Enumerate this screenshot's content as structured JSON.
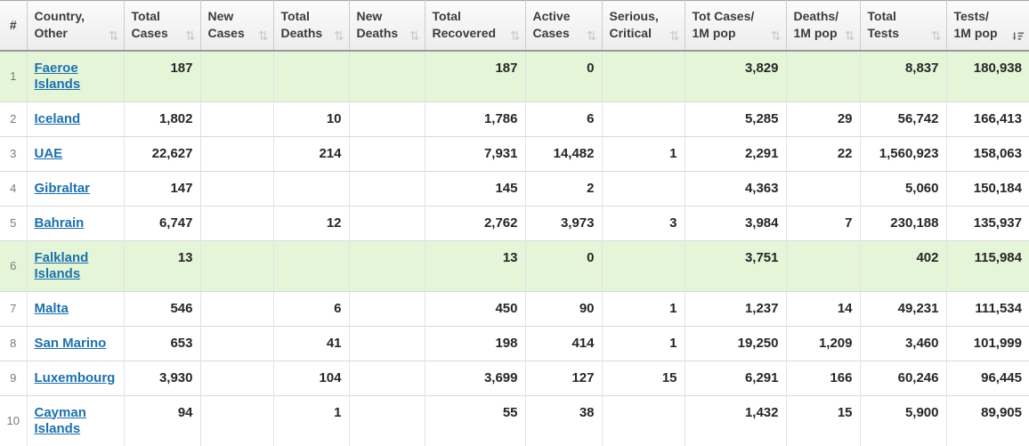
{
  "table": {
    "columns": [
      {
        "id": "rank",
        "lines": [
          "#"
        ],
        "sort": "none",
        "align": "center"
      },
      {
        "id": "country",
        "lines": [
          "Country,",
          "Other"
        ],
        "sort": "inactive",
        "align": "left"
      },
      {
        "id": "total_cases",
        "lines": [
          "Total",
          "Cases"
        ],
        "sort": "inactive",
        "align": "right"
      },
      {
        "id": "new_cases",
        "lines": [
          "New",
          "Cases"
        ],
        "sort": "inactive",
        "align": "right"
      },
      {
        "id": "total_deaths",
        "lines": [
          "Total",
          "Deaths"
        ],
        "sort": "inactive",
        "align": "right"
      },
      {
        "id": "new_deaths",
        "lines": [
          "New",
          "Deaths"
        ],
        "sort": "inactive",
        "align": "right"
      },
      {
        "id": "total_recovered",
        "lines": [
          "Total",
          "Recovered"
        ],
        "sort": "inactive",
        "align": "right"
      },
      {
        "id": "active_cases",
        "lines": [
          "Active",
          "Cases"
        ],
        "sort": "inactive",
        "align": "right"
      },
      {
        "id": "serious_critical",
        "lines": [
          "Serious,",
          "Critical"
        ],
        "sort": "inactive",
        "align": "right"
      },
      {
        "id": "tot_cases_1m",
        "lines": [
          "Tot Cases/",
          "1M pop"
        ],
        "sort": "inactive",
        "align": "right"
      },
      {
        "id": "deaths_1m",
        "lines": [
          "Deaths/",
          "1M pop"
        ],
        "sort": "inactive",
        "align": "right"
      },
      {
        "id": "total_tests",
        "lines": [
          "Total",
          "Tests"
        ],
        "sort": "inactive",
        "align": "right"
      },
      {
        "id": "tests_1m",
        "lines": [
          "Tests/",
          "1M pop"
        ],
        "sort": "desc",
        "align": "right"
      }
    ],
    "rows": [
      {
        "rank": "1",
        "country": "Faeroe Islands",
        "total_cases": "187",
        "new_cases": "",
        "total_deaths": "",
        "new_deaths": "",
        "total_recovered": "187",
        "active_cases": "0",
        "serious_critical": "",
        "tot_cases_1m": "3,829",
        "deaths_1m": "",
        "total_tests": "8,837",
        "tests_1m": "180,938",
        "highlighted": true
      },
      {
        "rank": "2",
        "country": "Iceland",
        "total_cases": "1,802",
        "new_cases": "",
        "total_deaths": "10",
        "new_deaths": "",
        "total_recovered": "1,786",
        "active_cases": "6",
        "serious_critical": "",
        "tot_cases_1m": "5,285",
        "deaths_1m": "29",
        "total_tests": "56,742",
        "tests_1m": "166,413",
        "highlighted": false
      },
      {
        "rank": "3",
        "country": "UAE",
        "total_cases": "22,627",
        "new_cases": "",
        "total_deaths": "214",
        "new_deaths": "",
        "total_recovered": "7,931",
        "active_cases": "14,482",
        "serious_critical": "1",
        "tot_cases_1m": "2,291",
        "deaths_1m": "22",
        "total_tests": "1,560,923",
        "tests_1m": "158,063",
        "highlighted": false
      },
      {
        "rank": "4",
        "country": "Gibraltar",
        "total_cases": "147",
        "new_cases": "",
        "total_deaths": "",
        "new_deaths": "",
        "total_recovered": "145",
        "active_cases": "2",
        "serious_critical": "",
        "tot_cases_1m": "4,363",
        "deaths_1m": "",
        "total_tests": "5,060",
        "tests_1m": "150,184",
        "highlighted": false
      },
      {
        "rank": "5",
        "country": "Bahrain",
        "total_cases": "6,747",
        "new_cases": "",
        "total_deaths": "12",
        "new_deaths": "",
        "total_recovered": "2,762",
        "active_cases": "3,973",
        "serious_critical": "3",
        "tot_cases_1m": "3,984",
        "deaths_1m": "7",
        "total_tests": "230,188",
        "tests_1m": "135,937",
        "highlighted": false
      },
      {
        "rank": "6",
        "country": "Falkland Islands",
        "total_cases": "13",
        "new_cases": "",
        "total_deaths": "",
        "new_deaths": "",
        "total_recovered": "13",
        "active_cases": "0",
        "serious_critical": "",
        "tot_cases_1m": "3,751",
        "deaths_1m": "",
        "total_tests": "402",
        "tests_1m": "115,984",
        "highlighted": true
      },
      {
        "rank": "7",
        "country": "Malta",
        "total_cases": "546",
        "new_cases": "",
        "total_deaths": "6",
        "new_deaths": "",
        "total_recovered": "450",
        "active_cases": "90",
        "serious_critical": "1",
        "tot_cases_1m": "1,237",
        "deaths_1m": "14",
        "total_tests": "49,231",
        "tests_1m": "111,534",
        "highlighted": false
      },
      {
        "rank": "8",
        "country": "San Marino",
        "total_cases": "653",
        "new_cases": "",
        "total_deaths": "41",
        "new_deaths": "",
        "total_recovered": "198",
        "active_cases": "414",
        "serious_critical": "1",
        "tot_cases_1m": "19,250",
        "deaths_1m": "1,209",
        "total_tests": "3,460",
        "tests_1m": "101,999",
        "highlighted": false
      },
      {
        "rank": "9",
        "country": "Luxembourg",
        "total_cases": "3,930",
        "new_cases": "",
        "total_deaths": "104",
        "new_deaths": "",
        "total_recovered": "3,699",
        "active_cases": "127",
        "serious_critical": "15",
        "tot_cases_1m": "6,291",
        "deaths_1m": "166",
        "total_tests": "60,246",
        "tests_1m": "96,445",
        "highlighted": false
      },
      {
        "rank": "10",
        "country": "Cayman Islands",
        "total_cases": "94",
        "new_cases": "",
        "total_deaths": "1",
        "new_deaths": "",
        "total_recovered": "55",
        "active_cases": "38",
        "serious_critical": "",
        "tot_cases_1m": "1,432",
        "deaths_1m": "15",
        "total_tests": "5,900",
        "tests_1m": "89,905",
        "highlighted": false
      }
    ]
  },
  "icons": {
    "sort_both": "sort-toggle-icon",
    "sort_desc": "sort-desc-icon"
  },
  "colors": {
    "highlight_row": "#e5f6d8",
    "link": "#1d71ad",
    "header_text": "#3c3c3c",
    "number_text": "#262626",
    "sort_icon_inactive": "#c9c9c9",
    "sort_icon_active": "#666666"
  }
}
